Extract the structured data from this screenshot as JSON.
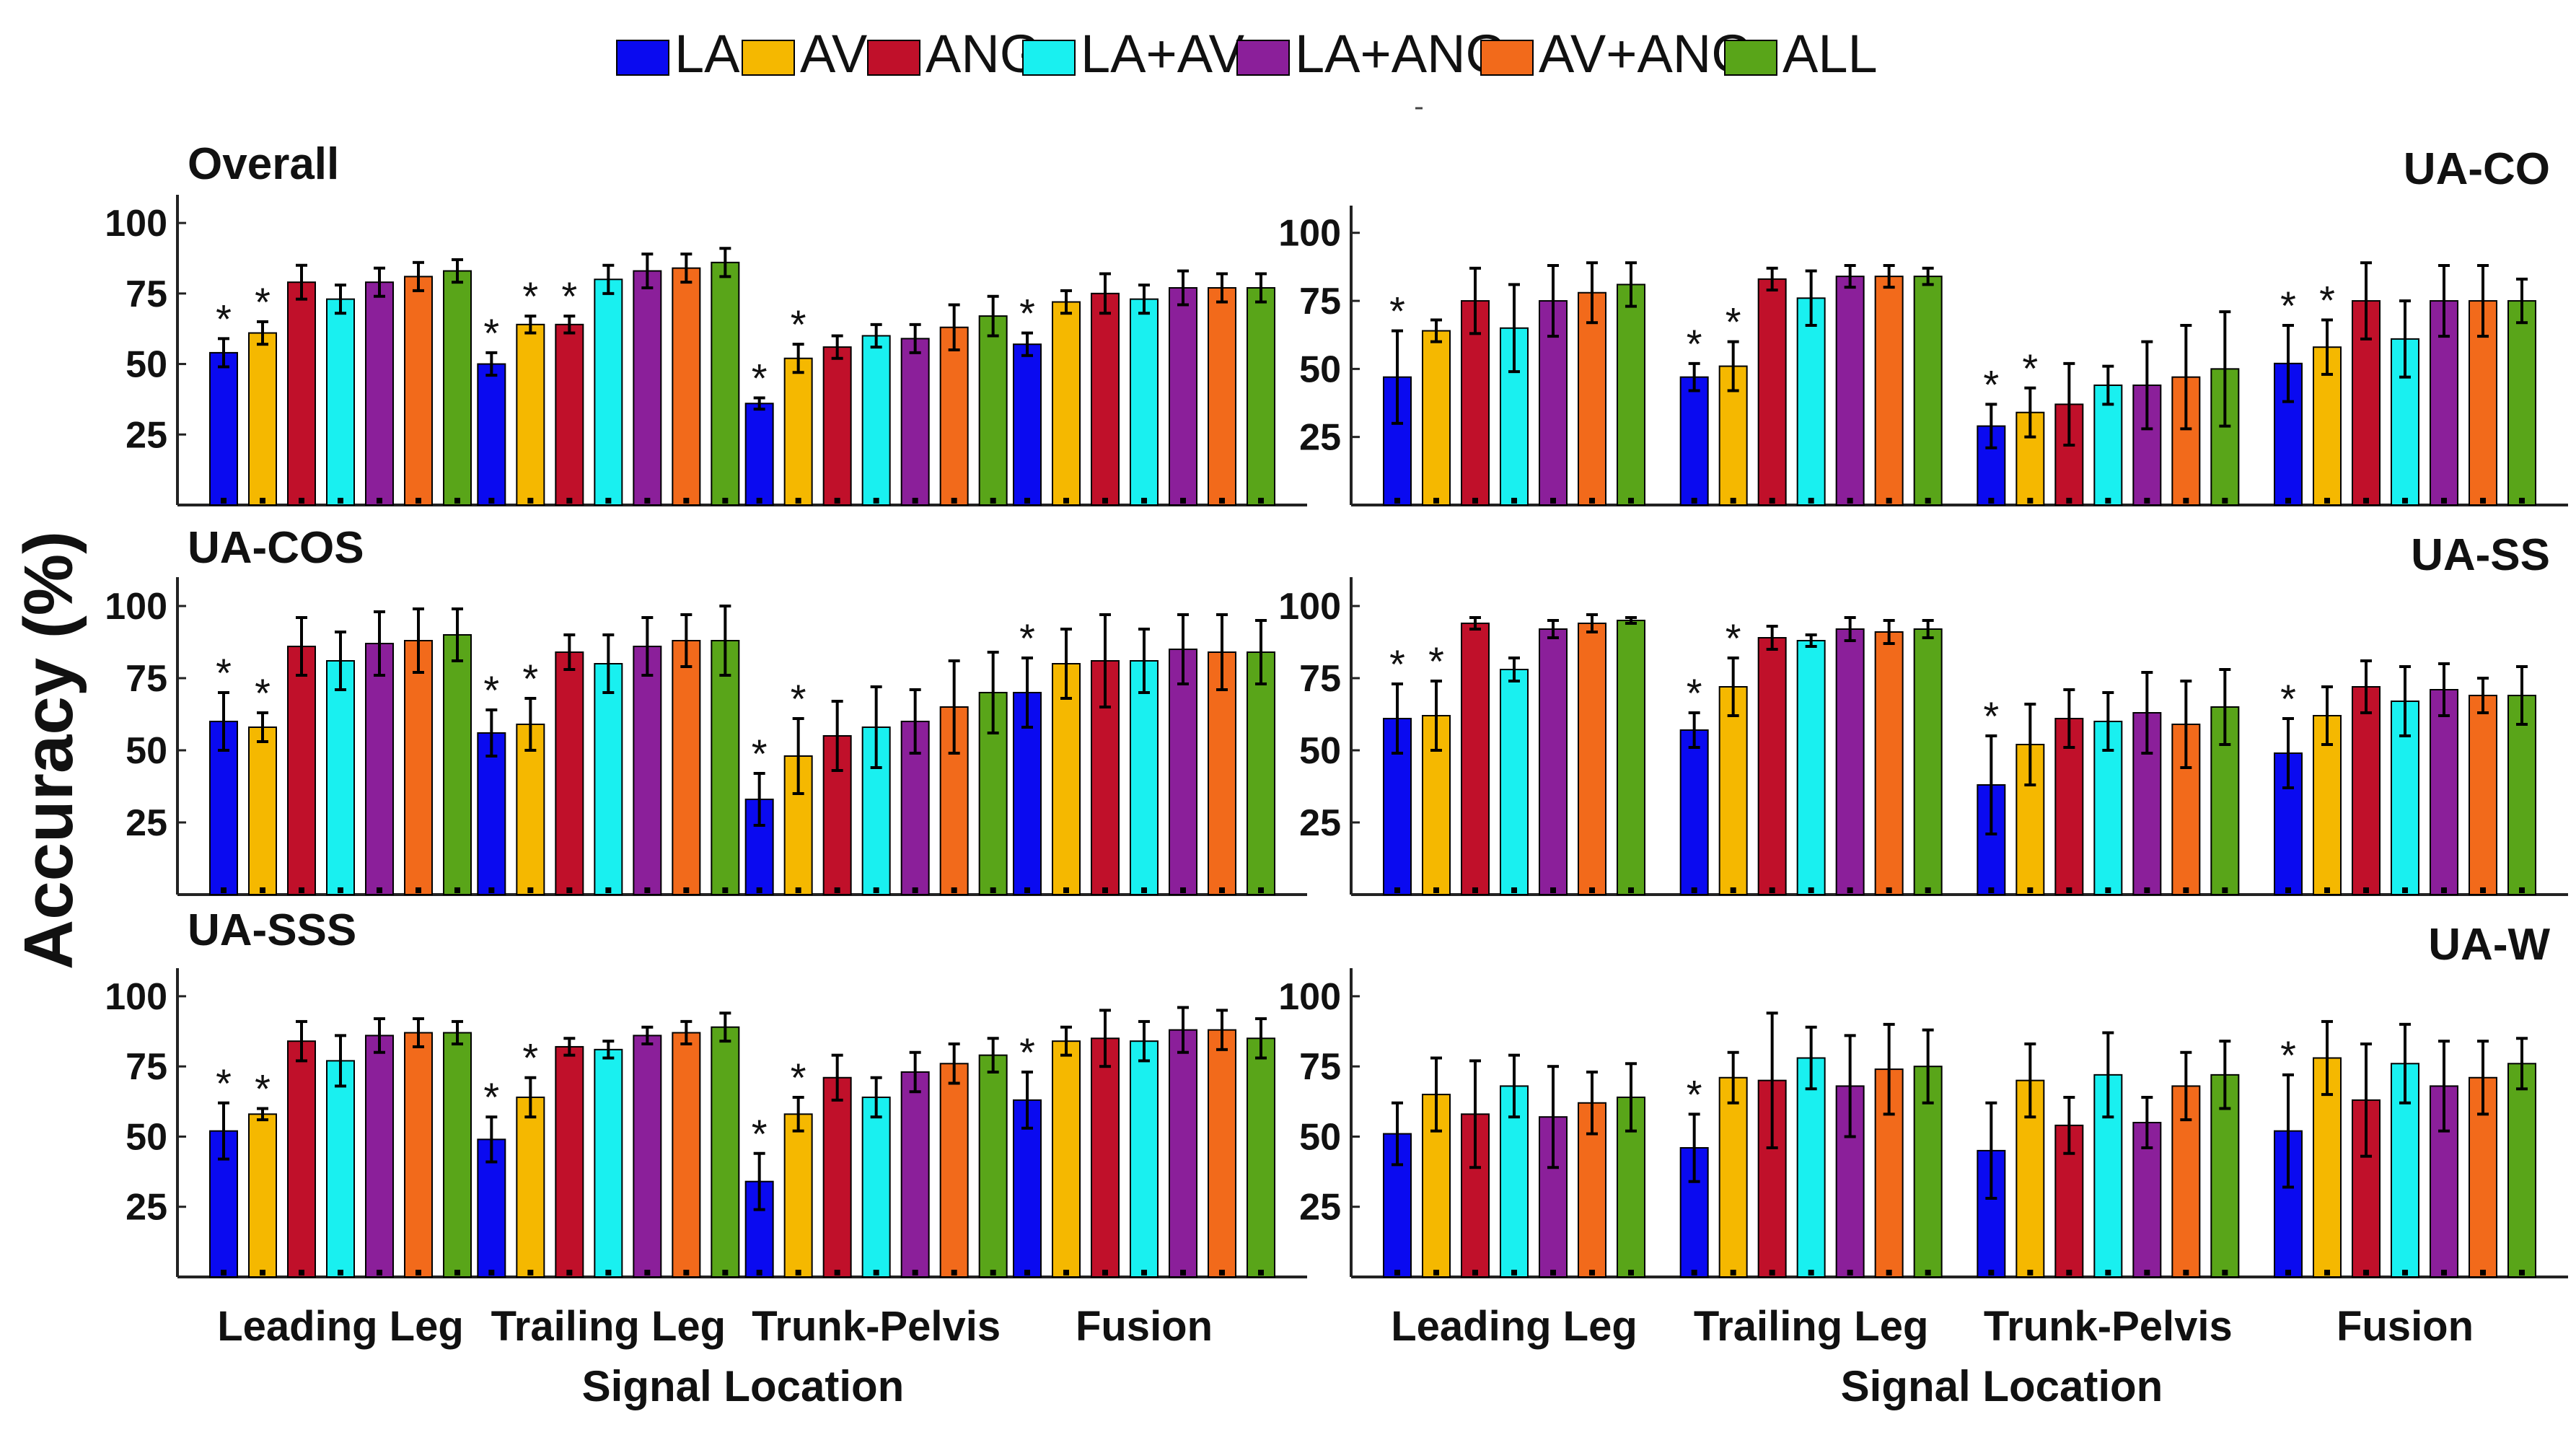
{
  "legend": [
    {
      "label": "LA",
      "color": "#0a0af0"
    },
    {
      "label": "AV",
      "color": "#f5b800"
    },
    {
      "label": "ANG",
      "color": "#c0102a"
    },
    {
      "label": "LA+AV",
      "color": "#19f0f0"
    },
    {
      "label": "LA+ANG",
      "color": "#8b1f9a"
    },
    {
      "label": "AV+ANG",
      "color": "#f26a1b"
    },
    {
      "label": "ALL",
      "color": "#59a519"
    }
  ],
  "y_axis_label": "Accuracy (%)",
  "x_axis_label": "Signal Location",
  "chart_data": [
    {
      "type": "bar",
      "title": "Overall",
      "categories": [
        "Leading Leg",
        "Trailing Leg",
        "Trunk-Pelvis",
        "Fusion"
      ],
      "xlabel": "Signal Location",
      "ylabel": "Accuracy (%)",
      "ylim": [
        0,
        110
      ],
      "yticks": [
        "25",
        "50",
        "75",
        "100"
      ],
      "significance_marker": "*",
      "series": [
        {
          "name": "LA",
          "values": [
            54,
            50,
            36,
            57
          ],
          "errors": [
            5,
            4,
            2,
            4
          ],
          "significant": [
            true,
            true,
            true,
            true
          ]
        },
        {
          "name": "AV",
          "values": [
            61,
            64,
            52,
            72
          ],
          "errors": [
            4,
            3,
            5,
            4
          ],
          "significant": [
            true,
            true,
            true,
            false
          ]
        },
        {
          "name": "ANG",
          "values": [
            79,
            64,
            56,
            75
          ],
          "errors": [
            6,
            3,
            4,
            7
          ],
          "significant": [
            false,
            true,
            false,
            false
          ]
        },
        {
          "name": "LA+AV",
          "values": [
            73,
            80,
            60,
            73
          ],
          "errors": [
            5,
            5,
            4,
            5
          ],
          "significant": [
            false,
            false,
            false,
            false
          ]
        },
        {
          "name": "LA+ANG",
          "values": [
            79,
            83,
            59,
            77
          ],
          "errors": [
            5,
            6,
            5,
            6
          ],
          "significant": [
            false,
            false,
            false,
            false
          ]
        },
        {
          "name": "AV+ANG",
          "values": [
            81,
            84,
            63,
            77
          ],
          "errors": [
            5,
            5,
            8,
            5
          ],
          "significant": [
            false,
            false,
            false,
            false
          ]
        },
        {
          "name": "ALL",
          "values": [
            83,
            86,
            67,
            77
          ],
          "errors": [
            4,
            5,
            7,
            5
          ],
          "significant": [
            false,
            false,
            false,
            false
          ]
        }
      ]
    },
    {
      "type": "bar",
      "title": "UA-CO",
      "categories": [
        "Leading Leg",
        "Trailing Leg",
        "Trunk-Pelvis",
        "Fusion"
      ],
      "xlabel": "Signal Location",
      "ylabel": "Accuracy (%)",
      "ylim": [
        0,
        110
      ],
      "yticks": [
        "25",
        "50",
        "75",
        "100"
      ],
      "significance_marker": "*",
      "series": [
        {
          "name": "LA",
          "values": [
            47,
            47,
            29,
            52
          ],
          "errors": [
            17,
            5,
            8,
            14
          ],
          "significant": [
            true,
            true,
            true,
            true
          ]
        },
        {
          "name": "AV",
          "values": [
            64,
            51,
            34,
            58
          ],
          "errors": [
            4,
            9,
            9,
            10
          ],
          "significant": [
            false,
            true,
            true,
            true
          ]
        },
        {
          "name": "ANG",
          "values": [
            75,
            83,
            37,
            75
          ],
          "errors": [
            12,
            4,
            15,
            14
          ],
          "significant": [
            false,
            false,
            false,
            false
          ]
        },
        {
          "name": "LA+AV",
          "values": [
            65,
            76,
            44,
            61
          ],
          "errors": [
            16,
            10,
            7,
            14
          ],
          "significant": [
            false,
            false,
            false,
            false
          ]
        },
        {
          "name": "LA+ANG",
          "values": [
            75,
            84,
            44,
            75
          ],
          "errors": [
            13,
            4,
            16,
            13
          ],
          "significant": [
            false,
            false,
            false,
            false
          ]
        },
        {
          "name": "AV+ANG",
          "values": [
            78,
            84,
            47,
            75
          ],
          "errors": [
            11,
            4,
            19,
            13
          ],
          "significant": [
            false,
            false,
            false,
            false
          ]
        },
        {
          "name": "ALL",
          "values": [
            81,
            84,
            50,
            75
          ],
          "errors": [
            8,
            3,
            21,
            8
          ],
          "significant": [
            false,
            false,
            false,
            false
          ]
        }
      ]
    },
    {
      "type": "bar",
      "title": "UA-COS",
      "categories": [
        "Leading Leg",
        "Trailing Leg",
        "Trunk-Pelvis",
        "Fusion"
      ],
      "xlabel": "Signal Location",
      "ylabel": "Accuracy (%)",
      "ylim": [
        0,
        110
      ],
      "yticks": [
        "25",
        "50",
        "75",
        "100"
      ],
      "significance_marker": "*",
      "series": [
        {
          "name": "LA",
          "values": [
            60,
            56,
            33,
            70
          ],
          "errors": [
            10,
            8,
            9,
            12
          ],
          "significant": [
            true,
            true,
            true,
            true
          ]
        },
        {
          "name": "AV",
          "values": [
            58,
            59,
            48,
            80
          ],
          "errors": [
            5,
            9,
            13,
            12
          ],
          "significant": [
            true,
            true,
            true,
            false
          ]
        },
        {
          "name": "ANG",
          "values": [
            86,
            84,
            55,
            81
          ],
          "errors": [
            10,
            6,
            12,
            16
          ],
          "significant": [
            false,
            false,
            false,
            false
          ]
        },
        {
          "name": "LA+AV",
          "values": [
            81,
            80,
            58,
            81
          ],
          "errors": [
            10,
            10,
            14,
            11
          ],
          "significant": [
            false,
            false,
            false,
            false
          ]
        },
        {
          "name": "LA+ANG",
          "values": [
            87,
            86,
            60,
            85
          ],
          "errors": [
            11,
            10,
            11,
            12
          ],
          "significant": [
            false,
            false,
            false,
            false
          ]
        },
        {
          "name": "AV+ANG",
          "values": [
            88,
            88,
            65,
            84
          ],
          "errors": [
            11,
            9,
            16,
            13
          ],
          "significant": [
            false,
            false,
            false,
            false
          ]
        },
        {
          "name": "ALL",
          "values": [
            90,
            88,
            70,
            84
          ],
          "errors": [
            9,
            12,
            14,
            11
          ],
          "significant": [
            false,
            false,
            false,
            false
          ]
        }
      ]
    },
    {
      "type": "bar",
      "title": "UA-SS",
      "categories": [
        "Leading Leg",
        "Trailing Leg",
        "Trunk-Pelvis",
        "Fusion"
      ],
      "xlabel": "Signal Location",
      "ylabel": "Accuracy (%)",
      "ylim": [
        0,
        110
      ],
      "yticks": [
        "25",
        "50",
        "75",
        "100"
      ],
      "significance_marker": "*",
      "series": [
        {
          "name": "LA",
          "values": [
            61,
            57,
            38,
            49
          ],
          "errors": [
            12,
            6,
            17,
            12
          ],
          "significant": [
            true,
            true,
            true,
            true
          ]
        },
        {
          "name": "AV",
          "values": [
            62,
            72,
            52,
            62
          ],
          "errors": [
            12,
            10,
            14,
            10
          ],
          "significant": [
            true,
            true,
            false,
            false
          ]
        },
        {
          "name": "ANG",
          "values": [
            94,
            89,
            61,
            72
          ],
          "errors": [
            2,
            4,
            10,
            9
          ],
          "significant": [
            false,
            false,
            false,
            false
          ]
        },
        {
          "name": "LA+AV",
          "values": [
            78,
            88,
            60,
            67
          ],
          "errors": [
            4,
            2,
            10,
            12
          ],
          "significant": [
            false,
            false,
            false,
            false
          ]
        },
        {
          "name": "LA+ANG",
          "values": [
            92,
            92,
            63,
            71
          ],
          "errors": [
            3,
            4,
            14,
            9
          ],
          "significant": [
            false,
            false,
            false,
            false
          ]
        },
        {
          "name": "AV+ANG",
          "values": [
            94,
            91,
            59,
            69
          ],
          "errors": [
            3,
            4,
            15,
            6
          ],
          "significant": [
            false,
            false,
            false,
            false
          ]
        },
        {
          "name": "ALL",
          "values": [
            95,
            92,
            65,
            69
          ],
          "errors": [
            1,
            3,
            13,
            10
          ],
          "significant": [
            false,
            false,
            false,
            false
          ]
        }
      ]
    },
    {
      "type": "bar",
      "title": "UA-SSS",
      "categories": [
        "Leading Leg",
        "Trailing Leg",
        "Trunk-Pelvis",
        "Fusion"
      ],
      "xlabel": "Signal Location",
      "ylabel": "Accuracy (%)",
      "ylim": [
        0,
        110
      ],
      "yticks": [
        "25",
        "50",
        "75",
        "100"
      ],
      "significance_marker": "*",
      "series": [
        {
          "name": "LA",
          "values": [
            52,
            49,
            34,
            63
          ],
          "errors": [
            10,
            8,
            10,
            10
          ],
          "significant": [
            true,
            true,
            true,
            true
          ]
        },
        {
          "name": "AV",
          "values": [
            58,
            64,
            58,
            84
          ],
          "errors": [
            2,
            7,
            6,
            5
          ],
          "significant": [
            true,
            true,
            true,
            false
          ]
        },
        {
          "name": "ANG",
          "values": [
            84,
            82,
            71,
            85
          ],
          "errors": [
            7,
            3,
            8,
            10
          ],
          "significant": [
            false,
            false,
            false,
            false
          ]
        },
        {
          "name": "LA+AV",
          "values": [
            77,
            81,
            64,
            84
          ],
          "errors": [
            9,
            3,
            7,
            7
          ],
          "significant": [
            false,
            false,
            false,
            false
          ]
        },
        {
          "name": "LA+ANG",
          "values": [
            86,
            86,
            73,
            88
          ],
          "errors": [
            6,
            3,
            7,
            8
          ],
          "significant": [
            false,
            false,
            false,
            false
          ]
        },
        {
          "name": "AV+ANG",
          "values": [
            87,
            87,
            76,
            88
          ],
          "errors": [
            5,
            4,
            7,
            7
          ],
          "significant": [
            false,
            false,
            false,
            false
          ]
        },
        {
          "name": "ALL",
          "values": [
            87,
            89,
            79,
            85
          ],
          "errors": [
            4,
            5,
            6,
            7
          ],
          "significant": [
            false,
            false,
            false,
            false
          ]
        }
      ]
    },
    {
      "type": "bar",
      "title": "UA-W",
      "categories": [
        "Leading Leg",
        "Trailing Leg",
        "Trunk-Pelvis",
        "Fusion"
      ],
      "xlabel": "Signal Location",
      "ylabel": "Accuracy (%)",
      "ylim": [
        0,
        110
      ],
      "yticks": [
        "25",
        "50",
        "75",
        "100"
      ],
      "significance_marker": "*",
      "series": [
        {
          "name": "LA",
          "values": [
            51,
            46,
            45,
            52
          ],
          "errors": [
            11,
            12,
            17,
            20
          ],
          "significant": [
            false,
            true,
            false,
            true
          ]
        },
        {
          "name": "AV",
          "values": [
            65,
            71,
            70,
            78
          ],
          "errors": [
            13,
            9,
            13,
            13
          ],
          "significant": [
            false,
            false,
            false,
            false
          ]
        },
        {
          "name": "ANG",
          "values": [
            58,
            70,
            54,
            63
          ],
          "errors": [
            19,
            24,
            10,
            20
          ],
          "significant": [
            false,
            false,
            false,
            false
          ]
        },
        {
          "name": "LA+AV",
          "values": [
            68,
            78,
            72,
            76
          ],
          "errors": [
            11,
            11,
            15,
            14
          ],
          "significant": [
            false,
            false,
            false,
            false
          ]
        },
        {
          "name": "LA+ANG",
          "values": [
            57,
            68,
            55,
            68
          ],
          "errors": [
            18,
            18,
            9,
            16
          ],
          "significant": [
            false,
            false,
            false,
            false
          ]
        },
        {
          "name": "AV+ANG",
          "values": [
            62,
            74,
            68,
            71
          ],
          "errors": [
            11,
            16,
            12,
            13
          ],
          "significant": [
            false,
            false,
            false,
            false
          ]
        },
        {
          "name": "ALL",
          "values": [
            64,
            75,
            72,
            76
          ],
          "errors": [
            12,
            13,
            12,
            9
          ],
          "significant": [
            false,
            false,
            false,
            false
          ]
        }
      ]
    }
  ]
}
